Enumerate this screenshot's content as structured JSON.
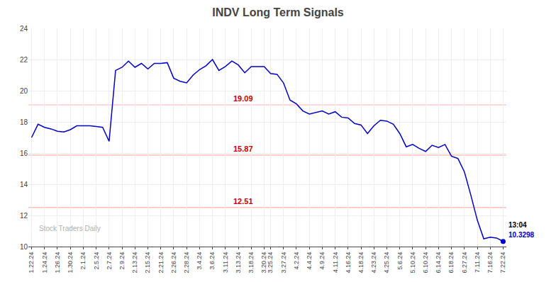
{
  "chart_data": {
    "type": "line",
    "title": "INDV Long Term Signals",
    "categories": [
      "1.22.24",
      null,
      "1.24.24",
      null,
      "1.26.24",
      null,
      "1.30.24",
      null,
      "2.1.24",
      null,
      "2.5.24",
      null,
      "2.7.24",
      null,
      "2.9.24",
      null,
      "2.13.24",
      null,
      "2.15.24",
      null,
      "2.21.24",
      null,
      "2.26.24",
      null,
      "2.28.24",
      null,
      "3.4.24",
      null,
      "3.6.24",
      null,
      "3.11.24",
      null,
      "3.13.24",
      null,
      "3.18.24",
      null,
      "3.20.24",
      "3.25.24",
      null,
      "3.27.24",
      null,
      "4.2.24",
      null,
      "4.4.24",
      null,
      "4.9.24",
      null,
      "4.11.24",
      null,
      "4.16.24",
      null,
      "4.18.24",
      null,
      "4.23.24",
      null,
      "4.25.24",
      null,
      "5.6.24",
      null,
      "5.10.24",
      null,
      "6.10.24",
      null,
      "6.14.24",
      null,
      "6.18.24",
      null,
      "6.27.24",
      null,
      "7.11.24",
      null,
      "7.16.24",
      null,
      "7.22.24"
    ],
    "series": [
      {
        "color": "#0000cc",
        "marker": "circle",
        "values": [
          17.0,
          17.85,
          17.65,
          17.55,
          17.4,
          17.35,
          17.5,
          17.75,
          17.75,
          17.75,
          17.7,
          17.65,
          16.75,
          21.3,
          21.5,
          21.9,
          21.5,
          21.75,
          21.4,
          21.75,
          21.75,
          21.8,
          20.8,
          20.6,
          20.5,
          21.0,
          21.35,
          21.6,
          22.0,
          21.3,
          21.55,
          21.9,
          21.65,
          21.15,
          21.55,
          21.55,
          21.55,
          21.1,
          21.05,
          20.5,
          19.4,
          19.15,
          18.7,
          18.5,
          18.6,
          18.7,
          18.5,
          18.65,
          18.3,
          18.25,
          17.9,
          17.8,
          17.25,
          17.75,
          18.1,
          18.05,
          17.85,
          17.25,
          16.4,
          16.55,
          16.3,
          16.1,
          16.5,
          16.35,
          16.55,
          15.8,
          15.65,
          14.8,
          13.3,
          11.7,
          10.5,
          10.6,
          10.55,
          10.33
        ]
      }
    ],
    "annotations": [
      {
        "type": "hline",
        "y": 19.09,
        "text": "19.09",
        "color": "#cc0000",
        "line_color": "#ffb0b0"
      },
      {
        "type": "hline",
        "y": 15.87,
        "text": "15.87",
        "color": "#cc0000",
        "line_color": "#ffb0b0"
      },
      {
        "type": "hline",
        "y": 12.51,
        "text": "12.51",
        "color": "#cc0000",
        "line_color": "#ffb0b0"
      },
      {
        "type": "last_point",
        "text": "13:04",
        "color": "#000000"
      },
      {
        "type": "last_point",
        "text": "10.3298",
        "color": "#0000cc"
      },
      {
        "type": "watermark",
        "text": "Stock Traders Daily",
        "color": "#b0b0b0"
      }
    ],
    "ylim": [
      10,
      24
    ],
    "yticks": [
      10,
      12,
      14,
      16,
      18,
      20,
      22,
      24
    ],
    "grid": true
  }
}
